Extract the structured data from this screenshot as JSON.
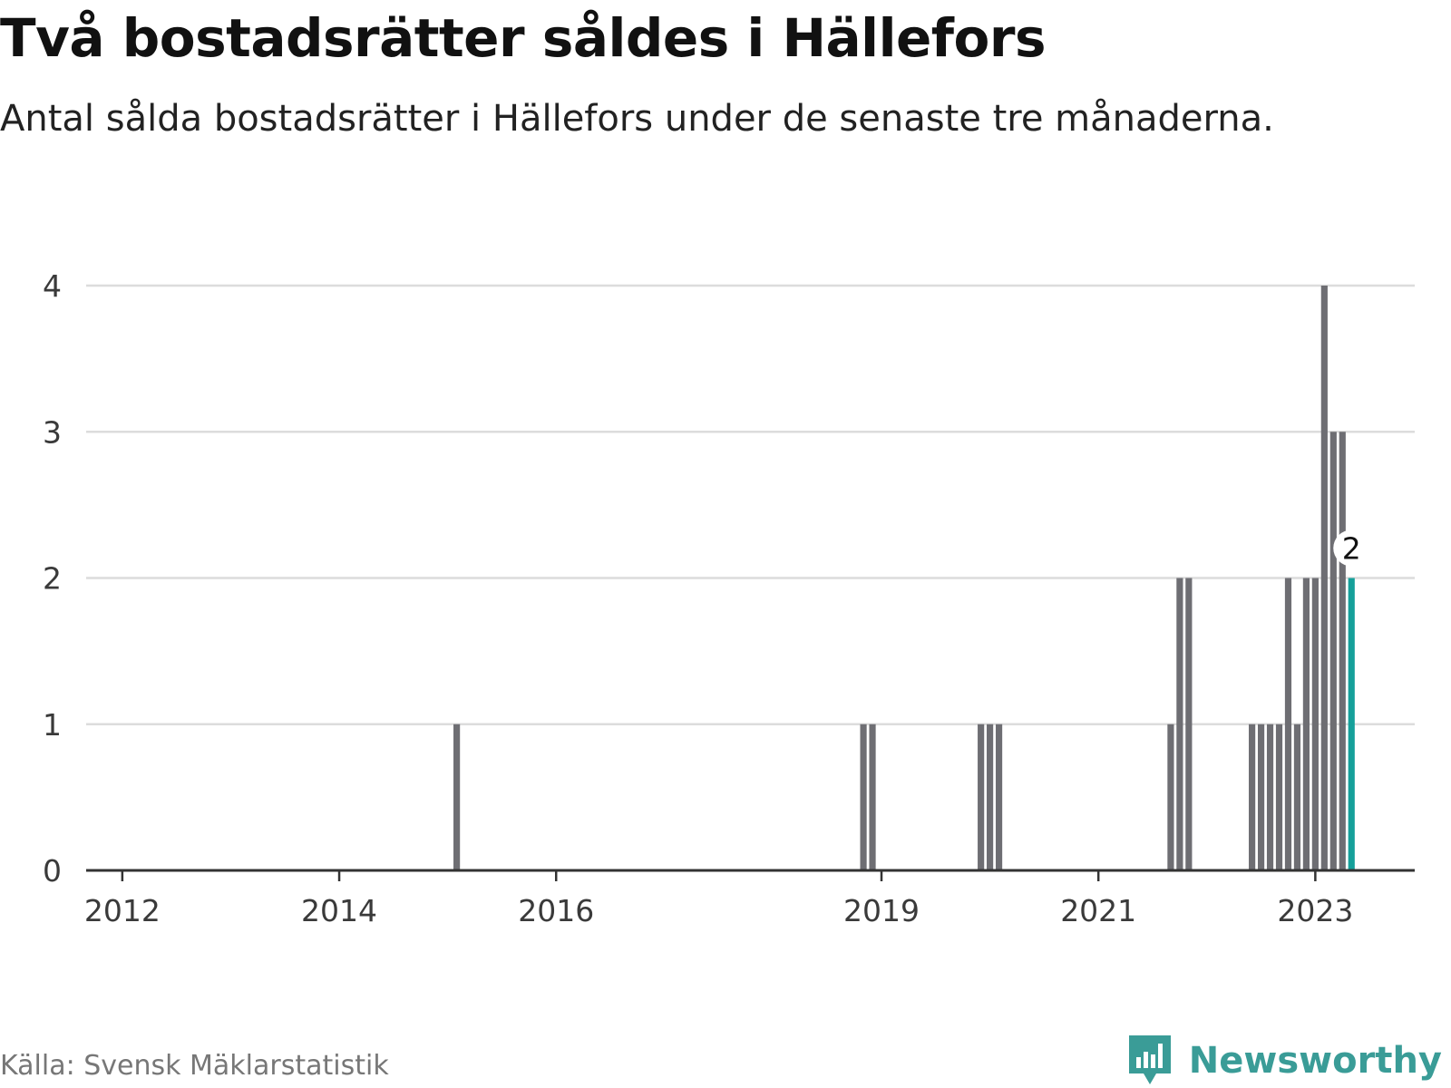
{
  "title": "Två bostadsrätter såldes i Hällefors",
  "subtitle": "Antal sålda bostadsrätter i Hällefors under de senaste tre månaderna.",
  "source": "Källa: Svensk Mäklarstatistik",
  "brand": "Newsworthy",
  "colors": {
    "bar": "#6e6e73",
    "highlight": "#15a09a",
    "grid": "#dcdcdc",
    "axis": "#333333",
    "brand": "#3a9c97"
  },
  "chart_data": {
    "type": "bar",
    "unit": "month",
    "xlim": [
      "2011-09",
      "2023-12"
    ],
    "ylim": [
      0,
      4
    ],
    "yticks": [
      0,
      1,
      2,
      3,
      4
    ],
    "xticks": [
      {
        "date": "2012-01",
        "label": "2012"
      },
      {
        "date": "2014-01",
        "label": "2014"
      },
      {
        "date": "2016-01",
        "label": "2016"
      },
      {
        "date": "2019-01",
        "label": "2019"
      },
      {
        "date": "2021-01",
        "label": "2021"
      },
      {
        "date": "2023-01",
        "label": "2023"
      }
    ],
    "points": [
      {
        "date": "2015-02",
        "value": 1
      },
      {
        "date": "2018-11",
        "value": 1
      },
      {
        "date": "2018-12",
        "value": 1
      },
      {
        "date": "2019-12",
        "value": 1
      },
      {
        "date": "2020-01",
        "value": 1
      },
      {
        "date": "2020-02",
        "value": 1
      },
      {
        "date": "2021-09",
        "value": 1
      },
      {
        "date": "2021-10",
        "value": 2
      },
      {
        "date": "2021-11",
        "value": 2
      },
      {
        "date": "2022-06",
        "value": 1
      },
      {
        "date": "2022-07",
        "value": 1
      },
      {
        "date": "2022-08",
        "value": 1
      },
      {
        "date": "2022-09",
        "value": 1
      },
      {
        "date": "2022-10",
        "value": 2
      },
      {
        "date": "2022-11",
        "value": 1
      },
      {
        "date": "2022-12",
        "value": 2
      },
      {
        "date": "2023-01",
        "value": 2
      },
      {
        "date": "2023-02",
        "value": 4
      },
      {
        "date": "2023-03",
        "value": 3
      },
      {
        "date": "2023-04",
        "value": 3
      },
      {
        "date": "2023-05",
        "value": 2,
        "highlight": true,
        "label": "2"
      }
    ]
  }
}
